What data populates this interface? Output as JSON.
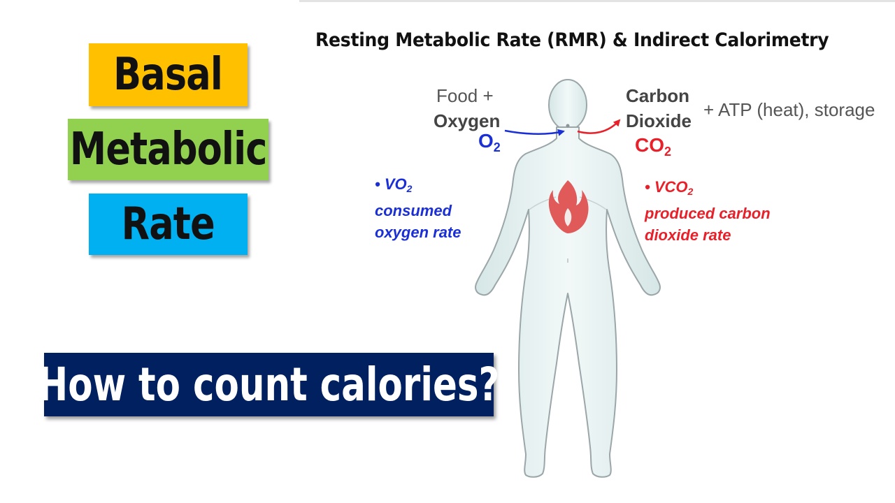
{
  "colors": {
    "basal_bg": "#FFC000",
    "metabolic_bg": "#92D050",
    "rate_bg": "#00B0F0",
    "banner_bg": "#002060",
    "oxygen_blue": "#1A2FD6",
    "co2_red": "#E8202A",
    "body_fill": "#E4EFEF",
    "body_stroke": "#9AA6A8",
    "flame": "#E05A5A"
  },
  "labels": {
    "basal": "Basal",
    "metabolic": "Metabolic",
    "rate": "Rate"
  },
  "banner": {
    "text": "How to count calories?"
  },
  "diagram": {
    "title": "Resting Metabolic Rate (RMR) & Indirect Calorimetry",
    "input": {
      "line1": "Food +",
      "line2": "Oxygen",
      "symbol": "O",
      "subscript": "2"
    },
    "output": {
      "line1": "Carbon",
      "line2": "Dioxide",
      "extra": "+ ATP (heat), storage",
      "symbol": "CO",
      "subscript": "2"
    },
    "vo2_note": {
      "bullet": "• VO",
      "subscript": "2",
      "line2": "consumed",
      "line3": "oxygen rate"
    },
    "vco2_note": {
      "bullet": "• VCO",
      "subscript": "2",
      "line2": "produced carbon",
      "line3": "dioxide rate"
    },
    "icons": {
      "body": "human-body-icon",
      "flame": "flame-icon"
    }
  }
}
